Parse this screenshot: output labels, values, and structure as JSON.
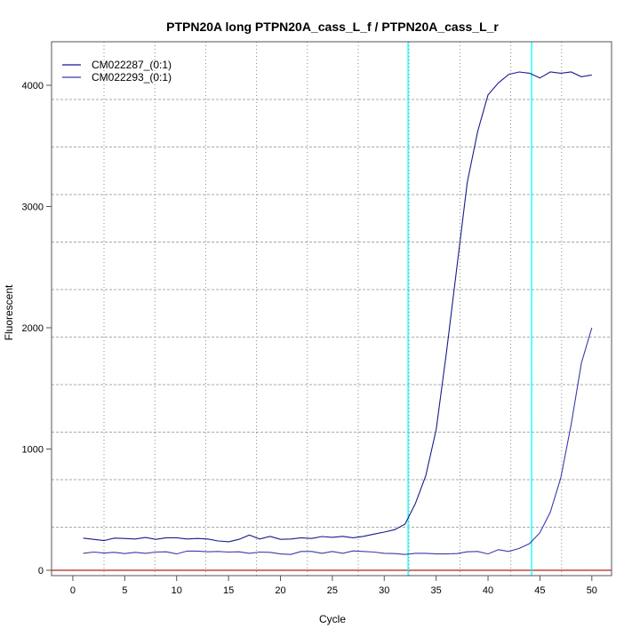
{
  "chart_data": {
    "type": "line",
    "title": "PTPN20A long PTPN20A_cass_L_f / PTPN20A_cass_L_r",
    "xlabel": "Cycle",
    "ylabel": "Fluorescent",
    "xlim": [
      -2.05,
      51.9
    ],
    "ylim": [
      -44,
      4359
    ],
    "xticks": [
      0,
      5,
      10,
      15,
      20,
      25,
      30,
      35,
      40,
      45,
      50
    ],
    "yticks": [
      0,
      1000,
      2000,
      3000,
      4000
    ],
    "threshold": 0,
    "threshold_color": "#b22222",
    "markers": [
      32.3,
      44.2
    ],
    "marker_color": "#00ffff",
    "legend_position": "top-left",
    "series": [
      {
        "name": "CM022287_(0:1)",
        "color": "#1a1a8c",
        "x": [
          1,
          2,
          3,
          4,
          5,
          6,
          7,
          8,
          9,
          10,
          11,
          12,
          13,
          14,
          15,
          16,
          17,
          18,
          19,
          20,
          21,
          22,
          23,
          24,
          25,
          26,
          27,
          28,
          29,
          30,
          31,
          32,
          33,
          34,
          35,
          36,
          37,
          38,
          39,
          40,
          41,
          42,
          43,
          44,
          45,
          46,
          47,
          48,
          49,
          50
        ],
        "values": [
          265,
          255,
          245,
          265,
          262,
          258,
          270,
          255,
          268,
          268,
          258,
          262,
          258,
          242,
          235,
          255,
          290,
          258,
          280,
          255,
          258,
          268,
          262,
          278,
          272,
          280,
          268,
          280,
          298,
          315,
          335,
          380,
          550,
          780,
          1160,
          1800,
          2500,
          3200,
          3620,
          3920,
          4020,
          4090,
          4110,
          4100,
          4060,
          4110,
          4100,
          4110,
          4070,
          4085
        ]
      },
      {
        "name": "CM022293_(0:1)",
        "color": "#3a3aa8",
        "x": [
          1,
          2,
          3,
          4,
          5,
          6,
          7,
          8,
          9,
          10,
          11,
          12,
          13,
          14,
          15,
          16,
          17,
          18,
          19,
          20,
          21,
          22,
          23,
          24,
          25,
          26,
          27,
          28,
          29,
          30,
          31,
          32,
          33,
          34,
          35,
          36,
          37,
          38,
          39,
          40,
          41,
          42,
          43,
          44,
          45,
          46,
          47,
          48,
          49,
          50
        ],
        "values": [
          140,
          150,
          142,
          148,
          138,
          148,
          140,
          150,
          152,
          135,
          158,
          158,
          152,
          155,
          150,
          152,
          140,
          150,
          148,
          135,
          130,
          155,
          155,
          140,
          155,
          140,
          160,
          155,
          150,
          140,
          138,
          130,
          140,
          140,
          135,
          135,
          138,
          152,
          155,
          135,
          170,
          155,
          180,
          220,
          310,
          480,
          760,
          1200,
          1710,
          2000
        ]
      }
    ]
  }
}
